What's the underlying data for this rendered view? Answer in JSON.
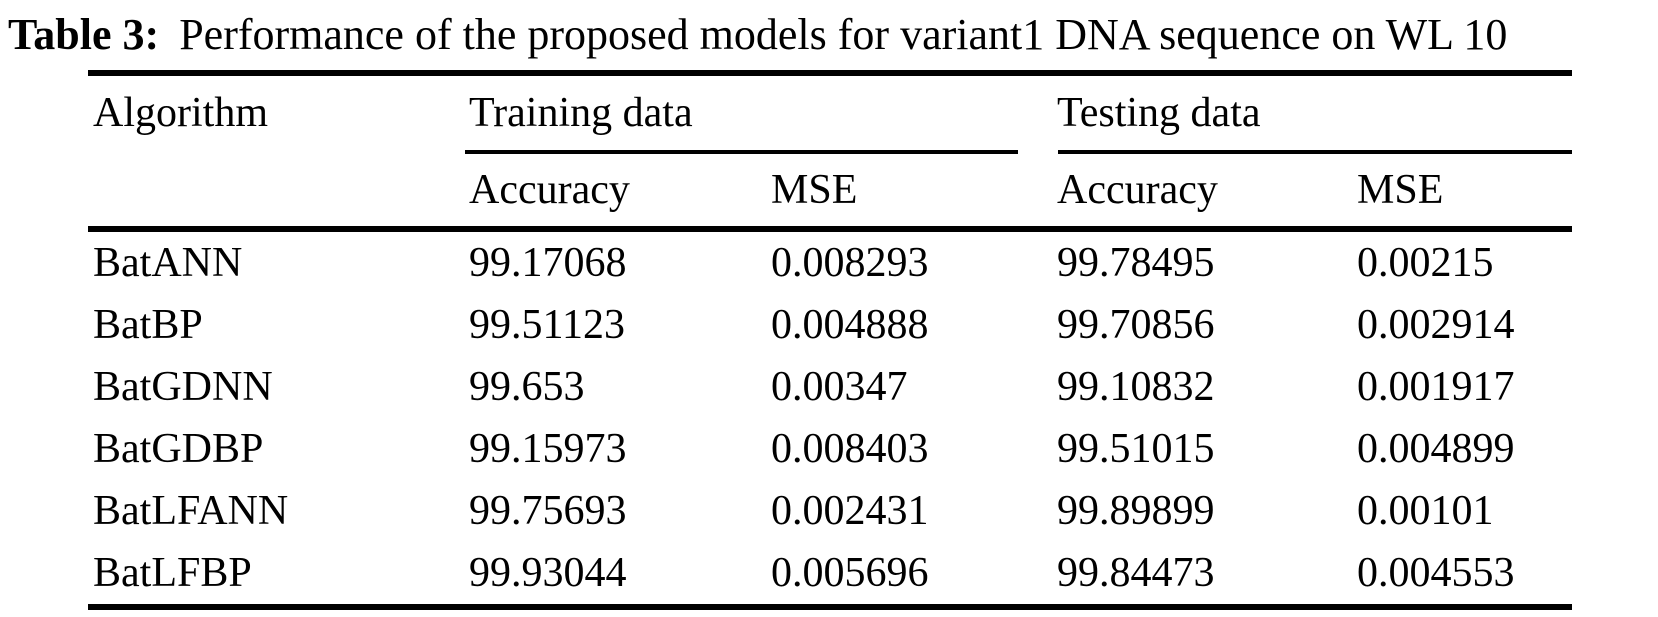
{
  "caption": {
    "label": "Table 3:",
    "text": "Performance of the proposed models for variant1 DNA sequence on WL 10"
  },
  "table": {
    "corner_header": "Algorithm",
    "group_headers": {
      "training": "Training data",
      "testing": "Testing data"
    },
    "subheaders": [
      "Accuracy",
      "MSE",
      "Accuracy",
      "MSE"
    ],
    "rows": [
      {
        "cells": [
          "BatANN",
          "99.17068",
          "0.008293",
          "99.78495",
          "0.00215"
        ]
      },
      {
        "cells": [
          "BatBP",
          "99.51123",
          "0.004888",
          "99.70856",
          "0.002914"
        ]
      },
      {
        "cells": [
          "BatGDNN",
          "99.653",
          "0.00347",
          "99.10832",
          "0.001917"
        ]
      },
      {
        "cells": [
          "BatGDBP",
          "99.15973",
          "0.008403",
          "99.51015",
          "0.004899"
        ]
      },
      {
        "cells": [
          "BatLFANN",
          "99.75693",
          "0.002431",
          "99.89899",
          "0.00101"
        ]
      },
      {
        "cells": [
          "BatLFBP",
          "99.93044",
          "0.005696",
          "99.84473",
          "0.004553"
        ]
      }
    ],
    "colors": {
      "text": "#000000",
      "background": "#ffffff",
      "rule": "#000000"
    }
  }
}
